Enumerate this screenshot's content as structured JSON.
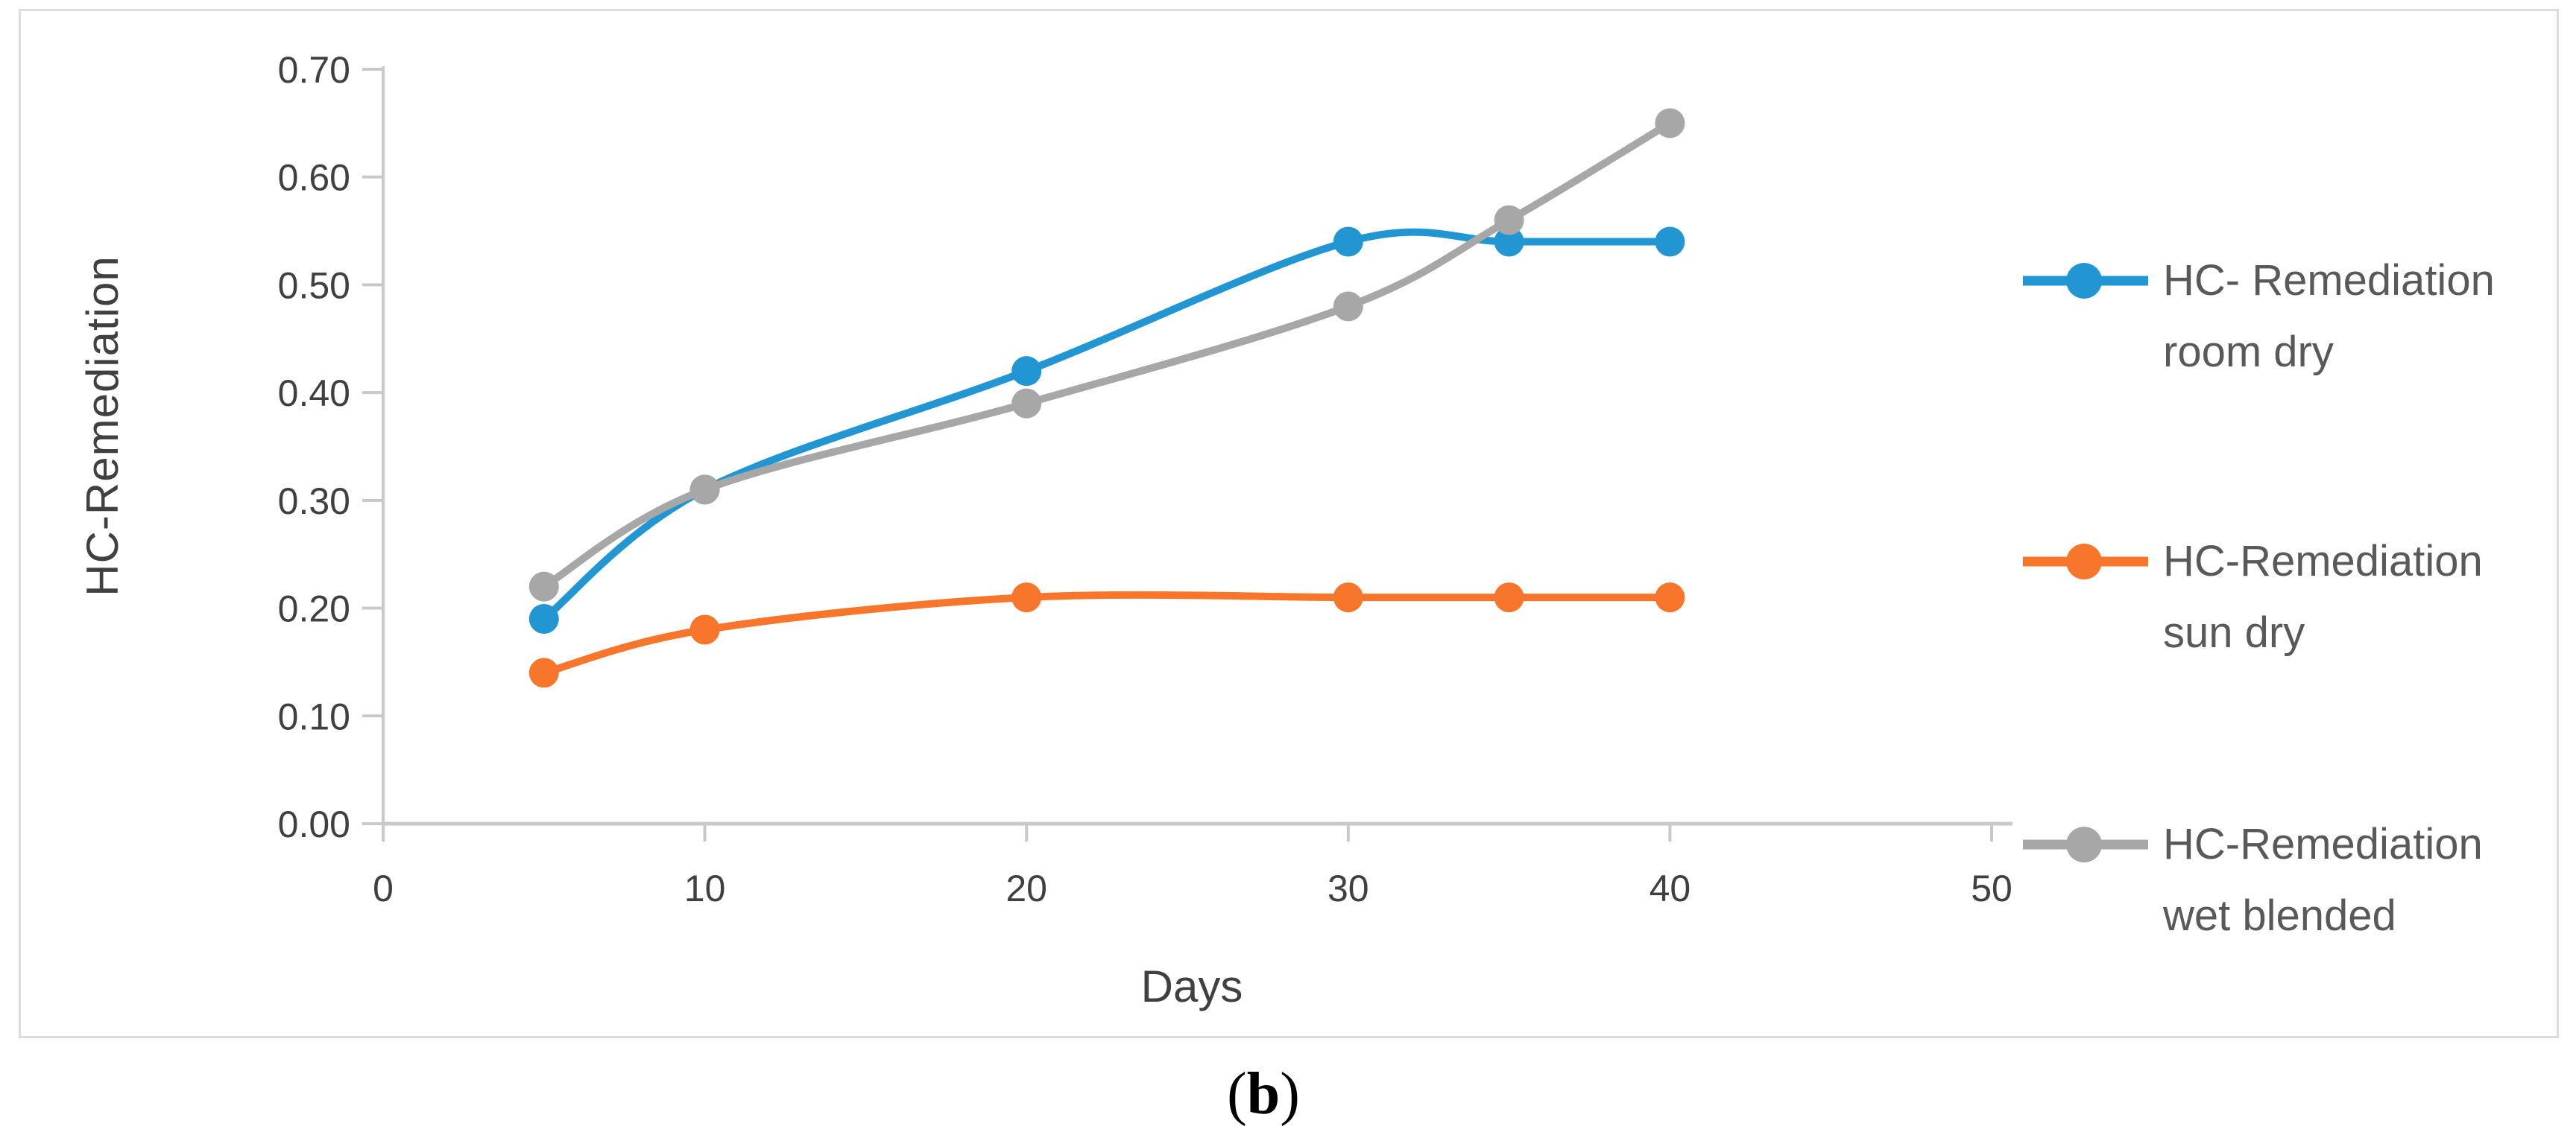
{
  "figure": {
    "caption_open": "(",
    "caption_letter": "b",
    "caption_close": ")"
  },
  "chart_data": {
    "type": "line",
    "title": "",
    "xlabel": "Days",
    "ylabel": "HC-Remediation",
    "x": [
      5,
      10,
      20,
      30,
      35,
      40
    ],
    "xlim": [
      0,
      50
    ],
    "ylim": [
      0.0,
      0.7
    ],
    "x_ticks": [
      "0",
      "10",
      "20",
      "30",
      "40",
      "50"
    ],
    "y_ticks": [
      "0.00",
      "0.10",
      "0.20",
      "0.30",
      "0.40",
      "0.50",
      "0.60",
      "0.70"
    ],
    "grid": false,
    "smooth": true,
    "marker": "circle",
    "legend_position": "right-outside",
    "axis_color": "#c9c9c9",
    "tick_label_color": "#404040",
    "legend_text_color": "#595959",
    "series": [
      {
        "name": "HC- Remediation room dry",
        "name_lines": [
          "HC- Remediation",
          "room dry"
        ],
        "color": "#2196d3",
        "values": [
          0.19,
          0.31,
          0.42,
          0.54,
          0.54,
          0.54
        ]
      },
      {
        "name": "HC-Remediation sun dry",
        "name_lines": [
          "HC-Remediation",
          "sun dry"
        ],
        "color": "#f8762b",
        "values": [
          0.14,
          0.18,
          0.21,
          0.21,
          0.21,
          0.21
        ]
      },
      {
        "name": "HC-Remediation wet blended",
        "name_lines": [
          "HC-Remediation",
          "wet blended"
        ],
        "color": "#a7a7a7",
        "values": [
          0.22,
          0.31,
          0.39,
          0.48,
          0.56,
          0.65
        ]
      }
    ]
  }
}
